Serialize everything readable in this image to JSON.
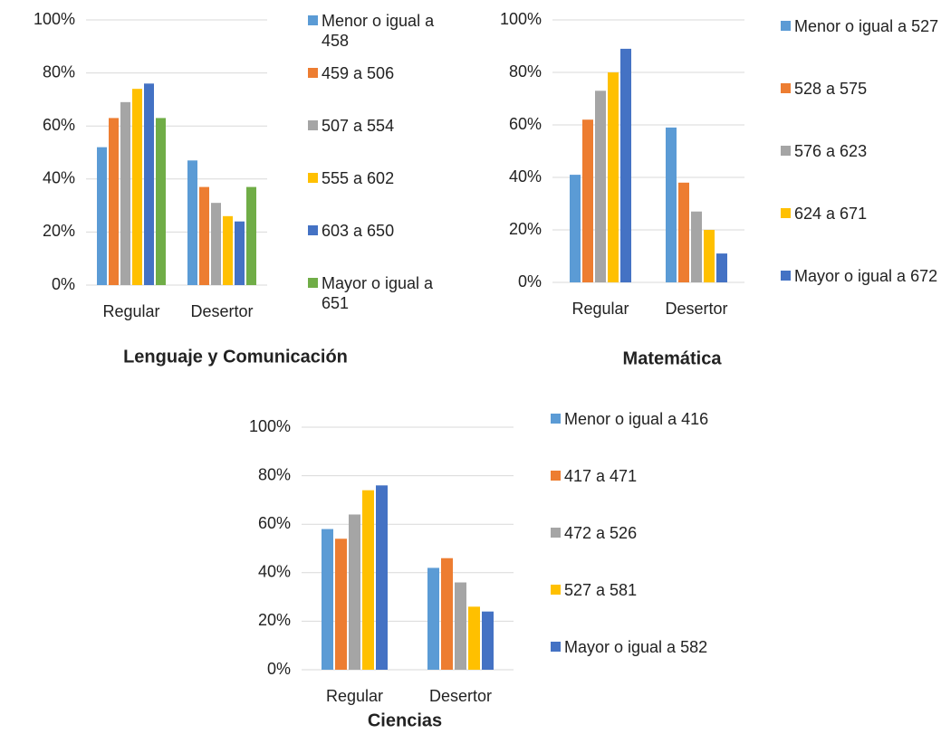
{
  "chart_data": [
    {
      "type": "bar",
      "title": "Lenguaje y Comunicación",
      "categories": [
        "Regular",
        "Desertor"
      ],
      "series": [
        {
          "name": "Menor o igual a 458",
          "color": "#5b9bd5",
          "values": [
            52,
            47
          ]
        },
        {
          "name": "459 a 506",
          "color": "#ed7d31",
          "values": [
            63,
            37
          ]
        },
        {
          "name": "507 a 554",
          "color": "#a5a5a5",
          "values": [
            69,
            31
          ]
        },
        {
          "name": "555 a 602",
          "color": "#ffc000",
          "values": [
            74,
            26
          ]
        },
        {
          "name": "603 a 650",
          "color": "#4472c4",
          "values": [
            76,
            24
          ]
        },
        {
          "name": "Mayor o igual a 651",
          "color": "#70ad47",
          "values": [
            63,
            37
          ]
        }
      ],
      "ylim": [
        0,
        100
      ],
      "yticks": [
        {
          "value": 0,
          "label": "0%"
        },
        {
          "value": 20,
          "label": "20%"
        },
        {
          "value": 40,
          "label": "40%"
        },
        {
          "value": 60,
          "label": "60%"
        },
        {
          "value": 80,
          "label": "80%"
        },
        {
          "value": 100,
          "label": "100%"
        }
      ],
      "grid": true,
      "legend": "right"
    },
    {
      "type": "bar",
      "title": "Matemática",
      "categories": [
        "Regular",
        "Desertor"
      ],
      "series": [
        {
          "name": "Menor o igual a 527",
          "color": "#5b9bd5",
          "values": [
            41,
            59
          ]
        },
        {
          "name": "528 a 575",
          "color": "#ed7d31",
          "values": [
            62,
            38
          ]
        },
        {
          "name": "576 a 623",
          "color": "#a5a5a5",
          "values": [
            73,
            27
          ]
        },
        {
          "name": "624 a 671",
          "color": "#ffc000",
          "values": [
            80,
            20
          ]
        },
        {
          "name": "Mayor o igual a 672",
          "color": "#4472c4",
          "values": [
            89,
            11
          ]
        }
      ],
      "ylim": [
        0,
        100
      ],
      "yticks": [
        {
          "value": 0,
          "label": "0%"
        },
        {
          "value": 20,
          "label": "20%"
        },
        {
          "value": 40,
          "label": "40%"
        },
        {
          "value": 60,
          "label": "60%"
        },
        {
          "value": 80,
          "label": "80%"
        },
        {
          "value": 100,
          "label": "100%"
        }
      ],
      "grid": true,
      "legend": "right"
    },
    {
      "type": "bar",
      "title": "Ciencias",
      "categories": [
        "Regular",
        "Desertor"
      ],
      "series": [
        {
          "name": "Menor o igual a 416",
          "color": "#5b9bd5",
          "values": [
            58,
            42
          ]
        },
        {
          "name": "417 a 471",
          "color": "#ed7d31",
          "values": [
            54,
            46
          ]
        },
        {
          "name": "472 a 526",
          "color": "#a5a5a5",
          "values": [
            64,
            36
          ]
        },
        {
          "name": "527 a 581",
          "color": "#ffc000",
          "values": [
            74,
            26
          ]
        },
        {
          "name": "Mayor o igual a 582",
          "color": "#4472c4",
          "values": [
            76,
            24
          ]
        }
      ],
      "ylim": [
        0,
        100
      ],
      "yticks": [
        {
          "value": 0,
          "label": "0%"
        },
        {
          "value": 20,
          "label": "20%"
        },
        {
          "value": 40,
          "label": "40%"
        },
        {
          "value": 60,
          "label": "60%"
        },
        {
          "value": 80,
          "label": "80%"
        },
        {
          "value": 100,
          "label": "100%"
        }
      ],
      "grid": true,
      "legend": "right"
    }
  ]
}
